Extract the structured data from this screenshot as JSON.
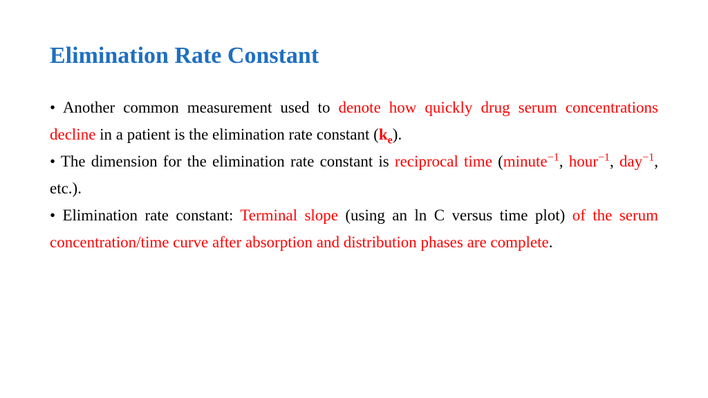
{
  "colors": {
    "title": "#1f6fc1",
    "body_black": "#000000",
    "highlight_red": "#ff0000"
  },
  "typography": {
    "title_fontsize_pt": 26,
    "body_fontsize_pt": 17,
    "font_family": "Times New Roman",
    "title_weight": "bold",
    "line_height": 1.7,
    "body_align": "justify"
  },
  "title": "Elimination Rate Constant",
  "bullets": {
    "b1": {
      "dot": "•",
      "t1": " Another common measurement used to ",
      "r1": "denote how quickly drug serum concentrations decline",
      "t2": " in a patient is the elimination rate constant (",
      "k": "k",
      "e": "e",
      "t3": ")."
    },
    "b2": {
      "dot": "•",
      "t1": " The dimension for the elimination rate constant is ",
      "r1": "reciprocal time",
      "t2": " (",
      "u1": "minute",
      "s1": "−1",
      "c1": ", ",
      "u2": "hour",
      "s2": "−1",
      "c2": ", ",
      "u3": "day",
      "s3": "−1",
      "t3": ", etc.)."
    },
    "b3": {
      "dot": "•",
      "t1": " Elimination rate constant: ",
      "r1": "Terminal slope",
      "t2": " (using an ln C versus time plot) ",
      "r2": "of the serum concentration/time curve after absorption and distribution phases are complete",
      "t3": "."
    }
  }
}
